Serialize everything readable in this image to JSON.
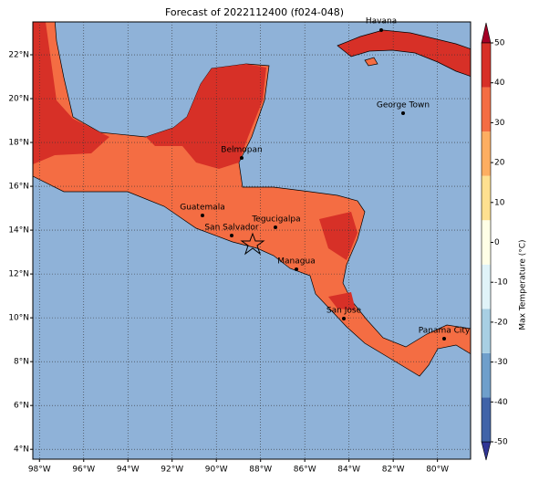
{
  "map": {
    "title": "Forecast of 2022112400 (f024-048)",
    "xlim": [
      -98.3,
      -78.5
    ],
    "ylim": [
      3.55,
      23.5
    ],
    "xticks": [
      {
        "value": -98,
        "label": "98°W"
      },
      {
        "value": -96,
        "label": "96°W"
      },
      {
        "value": -94,
        "label": "94°W"
      },
      {
        "value": -92,
        "label": "92°W"
      },
      {
        "value": -90,
        "label": "90°W"
      },
      {
        "value": -88,
        "label": "88°W"
      },
      {
        "value": -86,
        "label": "86°W"
      },
      {
        "value": -84,
        "label": "84°W"
      },
      {
        "value": -82,
        "label": "82°W"
      },
      {
        "value": -80,
        "label": "80°W"
      }
    ],
    "yticks": [
      {
        "value": 4,
        "label": "4°N"
      },
      {
        "value": 6,
        "label": "6°N"
      },
      {
        "value": 8,
        "label": "8°N"
      },
      {
        "value": 10,
        "label": "10°N"
      },
      {
        "value": 12,
        "label": "12°N"
      },
      {
        "value": 14,
        "label": "14°N"
      },
      {
        "value": 16,
        "label": "16°N"
      },
      {
        "value": 18,
        "label": "18°N"
      },
      {
        "value": 20,
        "label": "20°N"
      },
      {
        "value": 22,
        "label": "22°N"
      }
    ],
    "grid": true,
    "cities": [
      "Havana",
      "George Town",
      "Belmopan",
      "Guatemala",
      "Tegucigalpa",
      "San Salvador",
      "Managua",
      "San Jose",
      "Panama City"
    ],
    "colorbar": {
      "label": "Max Temperature (°C)",
      "lim": [
        -50,
        50
      ],
      "ticks": [
        -50,
        -40,
        -30,
        -20,
        -10,
        0,
        10,
        20,
        30,
        40,
        50
      ],
      "colors": [
        "#313695",
        "#4063a8",
        "#6f9fcb",
        "#a8cfe3",
        "#e0f3f8",
        "#fffee6",
        "#fee090",
        "#fdae61",
        "#f46d43",
        "#d73027",
        "#a50026"
      ]
    }
  }
}
